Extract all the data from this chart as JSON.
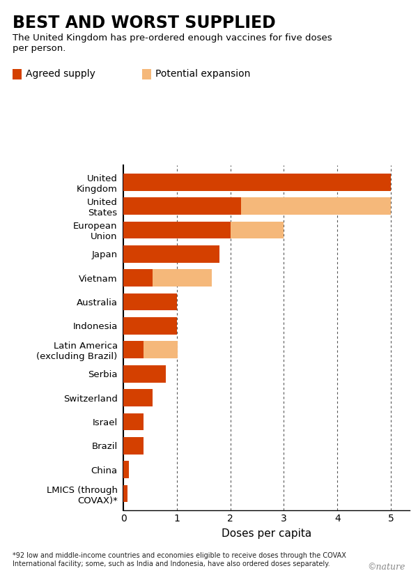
{
  "title": "BEST AND WORST SUPPLIED",
  "subtitle": "The United Kingdom has pre-ordered enough vaccines for five doses\nper person.",
  "legend_agreed": "Agreed supply",
  "legend_expansion": "Potential expansion",
  "xlabel": "Doses per capita",
  "footnote": "*92 low and middle-income countries and economies eligible to receive doses through the COVAX\nInternational facility; some, such as India and Indonesia, have also ordered doses separately.",
  "watermark": "©nature",
  "categories": [
    "United\nKingdom",
    "United\nStates",
    "European\nUnion",
    "Japan",
    "Vietnam",
    "Australia",
    "Indonesia",
    "Latin America\n(excluding Brazil)",
    "Serbia",
    "Switzerland",
    "Israel",
    "Brazil",
    "China",
    "LMICS (through\nCOVAX)*"
  ],
  "agreed": [
    5.0,
    2.2,
    2.0,
    1.8,
    0.55,
    1.0,
    1.0,
    0.38,
    0.8,
    0.55,
    0.38,
    0.38,
    0.1,
    0.08
  ],
  "expansion": [
    0.0,
    2.8,
    1.0,
    0.0,
    1.1,
    0.0,
    0.0,
    0.63,
    0.0,
    0.0,
    0.0,
    0.0,
    0.0,
    0.0
  ],
  "color_agreed": "#d44000",
  "color_expansion": "#f5b87a",
  "xlim": [
    0,
    5.35
  ],
  "xticks": [
    0,
    1,
    2,
    3,
    4,
    5
  ],
  "background_color": "#ffffff",
  "bar_height": 0.72
}
